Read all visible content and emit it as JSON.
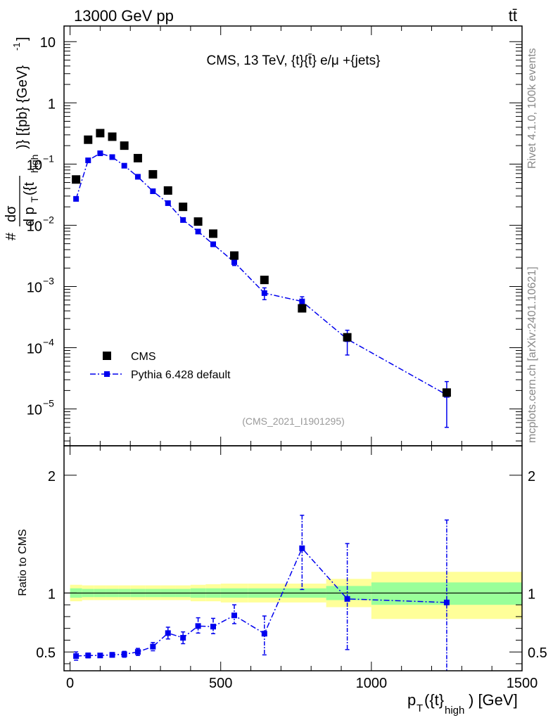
{
  "header": {
    "beam": "13000 GeV pp",
    "process": "tt̄",
    "side_top": "Rivet 4.1.0,  100k events",
    "side_bottom": "mcplots.cern.ch [arXiv:2401.10621]"
  },
  "chart_data": [
    {
      "type": "scatter",
      "title": "CMS, 13 TeV, {t}{t̄} e/μ +{jets}",
      "analysis_label": "(CMS_2021_I1901295)",
      "ylabel_parts": {
        "hash": "#",
        "num": "dσ",
        "den": "d p",
        "den_sub": "T",
        "den_arg": "({t",
        "den_arg_sub": "high",
        "tail": ")} [{pb} {GeV}",
        "tail_sup": "-1",
        "tail_end": "]"
      },
      "yscale": "log",
      "xlim": [
        -20,
        1500
      ],
      "ylim": [
        2.5e-06,
        18
      ],
      "ytick_labels": [
        {
          "value": 10,
          "base": "10",
          "exp": ""
        },
        {
          "value": 1,
          "base": "1",
          "exp": ""
        },
        {
          "value": 0.1,
          "base": "10",
          "exp": "−1"
        },
        {
          "value": 0.01,
          "base": "10",
          "exp": "−2"
        },
        {
          "value": 0.001,
          "base": "10",
          "exp": "−3"
        },
        {
          "value": 0.0001,
          "base": "10",
          "exp": "−4"
        },
        {
          "value": 1e-05,
          "base": "10",
          "exp": "−5"
        }
      ],
      "legend": {
        "position": "bottom-left",
        "entries": [
          "CMS",
          "Pythia 6.428 default"
        ]
      },
      "series": [
        {
          "name": "CMS",
          "color": "#000000",
          "marker": "square",
          "x": [
            20,
            60,
            100,
            140,
            180,
            225,
            275,
            325,
            375,
            425,
            475,
            545,
            645,
            770,
            920,
            1250
          ],
          "y": [
            0.056,
            0.25,
            0.32,
            0.28,
            0.2,
            0.125,
            0.068,
            0.037,
            0.02,
            0.0115,
            0.0073,
            0.0032,
            0.00128,
            0.00044,
            0.000148,
            1.85e-05
          ]
        },
        {
          "name": "Pythia 6.428 default",
          "color": "#0000ee",
          "marker": "square",
          "line": "dash-dot",
          "x": [
            20,
            60,
            100,
            140,
            180,
            225,
            275,
            325,
            375,
            425,
            475,
            545,
            645,
            770,
            920,
            1250
          ],
          "y": [
            0.027,
            0.115,
            0.15,
            0.13,
            0.094,
            0.062,
            0.036,
            0.023,
            0.0122,
            0.0079,
            0.0049,
            0.0025,
            0.00078,
            0.00057,
            0.000138,
            1.7e-05
          ],
          "yerr_low": [
            0.0015,
            0.005,
            0.006,
            0.005,
            0.004,
            0.003,
            0.002,
            0.0015,
            0.0008,
            0.0006,
            0.0004,
            0.0003,
            0.00017,
            0.00011,
            6.2e-05,
            1.2e-05
          ],
          "yerr_high": [
            0.0015,
            0.005,
            0.006,
            0.005,
            0.004,
            0.003,
            0.002,
            0.0015,
            0.0008,
            0.0006,
            0.0004,
            0.0003,
            0.00017,
            0.00011,
            5.5e-05,
            1.1e-05
          ]
        }
      ]
    },
    {
      "type": "scatter",
      "ylabel": "Ratio to CMS",
      "xlabel_parts": {
        "main": "p",
        "sub": "T",
        "arg": "({t}",
        "arg_sub": "high",
        "tail": ") [GeV]"
      },
      "xlim": [
        -20,
        1500
      ],
      "ylim": [
        0.34,
        2.25
      ],
      "xticks": [
        0,
        500,
        1000,
        1500
      ],
      "xtick_labels": [
        "0",
        "500",
        "1000",
        "1500"
      ],
      "yticks": [
        0.5,
        1,
        2
      ],
      "ytick_labels": [
        "0.5",
        "1",
        "2"
      ],
      "bands": {
        "bin_edges": [
          0,
          40,
          80,
          120,
          160,
          200,
          250,
          300,
          350,
          400,
          450,
          500,
          590,
          700,
          850,
          1000,
          1500
        ],
        "stat_low": [
          0.96,
          0.965,
          0.965,
          0.965,
          0.965,
          0.965,
          0.965,
          0.965,
          0.965,
          0.96,
          0.96,
          0.96,
          0.96,
          0.96,
          0.94,
          0.9
        ],
        "stat_high": [
          1.04,
          1.035,
          1.035,
          1.035,
          1.035,
          1.035,
          1.035,
          1.035,
          1.035,
          1.04,
          1.04,
          1.04,
          1.04,
          1.04,
          1.06,
          1.09
        ],
        "tot_low": [
          0.93,
          0.94,
          0.94,
          0.94,
          0.94,
          0.94,
          0.94,
          0.94,
          0.94,
          0.93,
          0.93,
          0.92,
          0.92,
          0.92,
          0.88,
          0.78
        ],
        "tot_high": [
          1.07,
          1.065,
          1.065,
          1.065,
          1.065,
          1.065,
          1.065,
          1.065,
          1.065,
          1.07,
          1.075,
          1.08,
          1.08,
          1.08,
          1.12,
          1.18
        ],
        "stat_color": "#99ff99",
        "tot_color": "#ffff99"
      },
      "series": [
        {
          "name": "Pythia 6.428 default",
          "color": "#0000ee",
          "x": [
            20,
            60,
            100,
            140,
            180,
            225,
            275,
            325,
            375,
            425,
            475,
            545,
            645,
            770,
            920,
            1250
          ],
          "y": [
            0.465,
            0.47,
            0.47,
            0.475,
            0.48,
            0.5,
            0.545,
            0.66,
            0.62,
            0.72,
            0.715,
            0.81,
            0.655,
            1.38,
            0.95,
            0.92
          ],
          "yerr_low": [
            0.035,
            0.02,
            0.015,
            0.02,
            0.025,
            0.03,
            0.035,
            0.05,
            0.05,
            0.06,
            0.06,
            0.07,
            0.18,
            0.35,
            0.43,
            0.6
          ],
          "yerr_high": [
            0.035,
            0.02,
            0.015,
            0.02,
            0.025,
            0.03,
            0.035,
            0.05,
            0.05,
            0.07,
            0.07,
            0.09,
            0.15,
            0.28,
            0.47,
            0.7
          ]
        }
      ]
    }
  ]
}
